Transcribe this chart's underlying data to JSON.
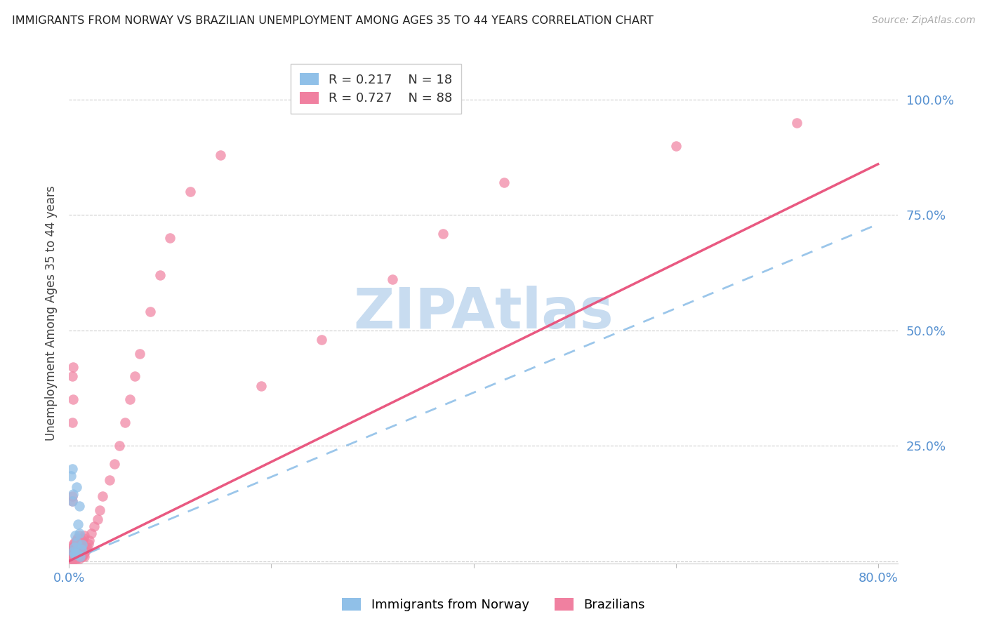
{
  "title": "IMMIGRANTS FROM NORWAY VS BRAZILIAN UNEMPLOYMENT AMONG AGES 35 TO 44 YEARS CORRELATION CHART",
  "source": "Source: ZipAtlas.com",
  "ylabel": "Unemployment Among Ages 35 to 44 years",
  "xlim": [
    0,
    0.82
  ],
  "ylim": [
    -0.005,
    1.08
  ],
  "norway_R": 0.217,
  "norway_N": 18,
  "brazil_R": 0.727,
  "brazil_N": 88,
  "norway_color": "#90C0E8",
  "brazil_color": "#F080A0",
  "norway_line_color": "#90C0E8",
  "brazil_line_color": "#E8507A",
  "watermark": "ZIPAtlas",
  "watermark_color": "#C8DCF0",
  "axis_tick_color": "#5590D0",
  "title_color": "#222222",
  "ylabel_color": "#444444",
  "grid_color": "#CCCCCC",
  "norway_line_x": [
    0.0,
    0.8
  ],
  "norway_line_y": [
    0.0,
    0.73
  ],
  "brazil_line_x": [
    0.0,
    0.8
  ],
  "brazil_line_y": [
    0.0,
    0.86
  ],
  "norway_x": [
    0.002,
    0.003,
    0.004,
    0.004,
    0.005,
    0.006,
    0.007,
    0.008,
    0.009,
    0.01,
    0.01,
    0.011,
    0.012,
    0.013,
    0.003,
    0.005,
    0.007,
    0.006
  ],
  "norway_y": [
    0.185,
    0.2,
    0.02,
    0.145,
    0.03,
    0.055,
    0.04,
    0.015,
    0.08,
    0.06,
    0.12,
    0.01,
    0.025,
    0.035,
    0.13,
    0.015,
    0.16,
    0.018
  ],
  "brazil_x": [
    0.001,
    0.001,
    0.001,
    0.002,
    0.002,
    0.002,
    0.002,
    0.003,
    0.003,
    0.003,
    0.003,
    0.003,
    0.003,
    0.004,
    0.004,
    0.004,
    0.004,
    0.004,
    0.005,
    0.005,
    0.005,
    0.005,
    0.005,
    0.006,
    0.006,
    0.006,
    0.006,
    0.007,
    0.007,
    0.007,
    0.007,
    0.008,
    0.008,
    0.008,
    0.008,
    0.009,
    0.009,
    0.009,
    0.01,
    0.01,
    0.01,
    0.01,
    0.011,
    0.011,
    0.012,
    0.012,
    0.013,
    0.013,
    0.014,
    0.014,
    0.015,
    0.015,
    0.016,
    0.017,
    0.018,
    0.019,
    0.02,
    0.022,
    0.025,
    0.028,
    0.03,
    0.033,
    0.04,
    0.045,
    0.05,
    0.055,
    0.06,
    0.065,
    0.07,
    0.08,
    0.09,
    0.1,
    0.12,
    0.15,
    0.003,
    0.004,
    0.003,
    0.004,
    0.003,
    0.003,
    0.19,
    0.25,
    0.32,
    0.37,
    0.43,
    0.6,
    0.72,
    0.003
  ],
  "brazil_y": [
    0.005,
    0.01,
    0.015,
    0.005,
    0.01,
    0.015,
    0.02,
    0.005,
    0.008,
    0.012,
    0.018,
    0.025,
    0.03,
    0.005,
    0.01,
    0.015,
    0.025,
    0.035,
    0.005,
    0.01,
    0.015,
    0.025,
    0.04,
    0.005,
    0.012,
    0.02,
    0.035,
    0.005,
    0.015,
    0.025,
    0.045,
    0.008,
    0.018,
    0.03,
    0.05,
    0.008,
    0.02,
    0.038,
    0.005,
    0.015,
    0.028,
    0.055,
    0.01,
    0.035,
    0.01,
    0.04,
    0.01,
    0.045,
    0.015,
    0.05,
    0.01,
    0.055,
    0.02,
    0.025,
    0.03,
    0.038,
    0.045,
    0.06,
    0.075,
    0.09,
    0.11,
    0.14,
    0.175,
    0.21,
    0.25,
    0.3,
    0.35,
    0.4,
    0.45,
    0.54,
    0.62,
    0.7,
    0.8,
    0.88,
    0.3,
    0.35,
    0.4,
    0.42,
    0.13,
    0.14,
    0.38,
    0.48,
    0.61,
    0.71,
    0.82,
    0.9,
    0.95,
    0.01
  ]
}
